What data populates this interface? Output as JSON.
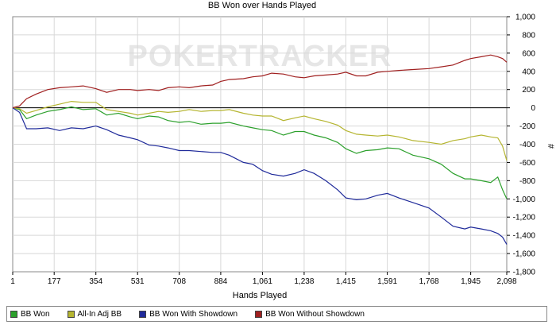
{
  "chart_data": {
    "type": "line",
    "title": "BB Won over Hands Played",
    "xlabel": "Hands Played",
    "ylabel": "#",
    "watermark": "POKERTRACKER",
    "xlim": [
      1,
      2098
    ],
    "ylim": [
      -1800,
      1000
    ],
    "x_ticks": [
      1,
      177,
      354,
      531,
      708,
      884,
      1061,
      1238,
      1415,
      1591,
      1768,
      1945,
      2098
    ],
    "x_tick_labels": [
      "1",
      "177",
      "354",
      "531",
      "708",
      "884",
      "1,061",
      "1,238",
      "1,415",
      "1,591",
      "1,768",
      "1,945",
      "2,098"
    ],
    "y_ticks": [
      1000,
      800,
      600,
      400,
      200,
      0,
      -200,
      -400,
      -600,
      -800,
      -1000,
      -1200,
      -1400,
      -1600,
      -1800
    ],
    "y_tick_labels": [
      "1,000",
      "800",
      "600",
      "400",
      "200",
      "0",
      "-200",
      "-400",
      "-600",
      "-800",
      "-1,000",
      "-1,200",
      "-1,400",
      "-1,600",
      "-1,800"
    ],
    "grid": true,
    "legend_position": "bottom",
    "series": [
      {
        "name": "BB Won",
        "color": "#2ca02c",
        "points": [
          [
            1,
            0
          ],
          [
            30,
            -20
          ],
          [
            60,
            -120
          ],
          [
            100,
            -80
          ],
          [
            150,
            -40
          ],
          [
            200,
            -20
          ],
          [
            250,
            10
          ],
          [
            300,
            -20
          ],
          [
            354,
            -10
          ],
          [
            400,
            -80
          ],
          [
            450,
            -60
          ],
          [
            500,
            -100
          ],
          [
            531,
            -120
          ],
          [
            580,
            -90
          ],
          [
            620,
            -100
          ],
          [
            660,
            -140
          ],
          [
            708,
            -160
          ],
          [
            750,
            -150
          ],
          [
            800,
            -180
          ],
          [
            850,
            -170
          ],
          [
            884,
            -170
          ],
          [
            920,
            -160
          ],
          [
            980,
            -200
          ],
          [
            1020,
            -220
          ],
          [
            1061,
            -240
          ],
          [
            1100,
            -250
          ],
          [
            1150,
            -300
          ],
          [
            1200,
            -260
          ],
          [
            1238,
            -260
          ],
          [
            1280,
            -300
          ],
          [
            1330,
            -330
          ],
          [
            1380,
            -380
          ],
          [
            1415,
            -450
          ],
          [
            1460,
            -500
          ],
          [
            1500,
            -470
          ],
          [
            1550,
            -460
          ],
          [
            1591,
            -440
          ],
          [
            1640,
            -450
          ],
          [
            1700,
            -520
          ],
          [
            1768,
            -560
          ],
          [
            1820,
            -620
          ],
          [
            1870,
            -720
          ],
          [
            1920,
            -780
          ],
          [
            1945,
            -780
          ],
          [
            1990,
            -800
          ],
          [
            2030,
            -820
          ],
          [
            2060,
            -760
          ],
          [
            2080,
            -900
          ],
          [
            2098,
            -1000
          ]
        ]
      },
      {
        "name": "All-In Adj BB",
        "color": "#b5b530",
        "points": [
          [
            1,
            0
          ],
          [
            30,
            -10
          ],
          [
            60,
            -60
          ],
          [
            100,
            -30
          ],
          [
            150,
            10
          ],
          [
            200,
            40
          ],
          [
            250,
            70
          ],
          [
            300,
            60
          ],
          [
            354,
            60
          ],
          [
            400,
            -20
          ],
          [
            450,
            -40
          ],
          [
            500,
            -60
          ],
          [
            531,
            -80
          ],
          [
            580,
            -60
          ],
          [
            620,
            -40
          ],
          [
            660,
            -50
          ],
          [
            708,
            -40
          ],
          [
            750,
            -20
          ],
          [
            800,
            -40
          ],
          [
            850,
            -30
          ],
          [
            884,
            -30
          ],
          [
            920,
            -20
          ],
          [
            980,
            -60
          ],
          [
            1020,
            -80
          ],
          [
            1061,
            -90
          ],
          [
            1100,
            -90
          ],
          [
            1150,
            -140
          ],
          [
            1200,
            -110
          ],
          [
            1238,
            -90
          ],
          [
            1280,
            -120
          ],
          [
            1330,
            -150
          ],
          [
            1380,
            -190
          ],
          [
            1415,
            -250
          ],
          [
            1460,
            -290
          ],
          [
            1500,
            -300
          ],
          [
            1550,
            -310
          ],
          [
            1591,
            -300
          ],
          [
            1640,
            -320
          ],
          [
            1700,
            -360
          ],
          [
            1768,
            -380
          ],
          [
            1820,
            -400
          ],
          [
            1870,
            -360
          ],
          [
            1920,
            -340
          ],
          [
            1945,
            -320
          ],
          [
            1990,
            -300
          ],
          [
            2030,
            -320
          ],
          [
            2060,
            -330
          ],
          [
            2080,
            -420
          ],
          [
            2098,
            -580
          ]
        ]
      },
      {
        "name": "BB Won With Showdown",
        "color": "#1f2a9a",
        "points": [
          [
            1,
            0
          ],
          [
            30,
            -50
          ],
          [
            60,
            -230
          ],
          [
            100,
            -230
          ],
          [
            150,
            -220
          ],
          [
            200,
            -250
          ],
          [
            250,
            -220
          ],
          [
            300,
            -230
          ],
          [
            354,
            -200
          ],
          [
            400,
            -240
          ],
          [
            450,
            -300
          ],
          [
            500,
            -330
          ],
          [
            531,
            -350
          ],
          [
            580,
            -410
          ],
          [
            620,
            -420
          ],
          [
            660,
            -440
          ],
          [
            708,
            -470
          ],
          [
            750,
            -470
          ],
          [
            800,
            -480
          ],
          [
            850,
            -490
          ],
          [
            884,
            -490
          ],
          [
            920,
            -520
          ],
          [
            980,
            -600
          ],
          [
            1020,
            -620
          ],
          [
            1061,
            -690
          ],
          [
            1100,
            -730
          ],
          [
            1150,
            -750
          ],
          [
            1200,
            -720
          ],
          [
            1238,
            -680
          ],
          [
            1280,
            -720
          ],
          [
            1330,
            -800
          ],
          [
            1380,
            -900
          ],
          [
            1415,
            -990
          ],
          [
            1460,
            -1010
          ],
          [
            1500,
            -1000
          ],
          [
            1550,
            -960
          ],
          [
            1591,
            -940
          ],
          [
            1640,
            -990
          ],
          [
            1700,
            -1040
          ],
          [
            1768,
            -1100
          ],
          [
            1820,
            -1200
          ],
          [
            1870,
            -1300
          ],
          [
            1920,
            -1330
          ],
          [
            1945,
            -1310
          ],
          [
            1990,
            -1330
          ],
          [
            2030,
            -1350
          ],
          [
            2060,
            -1380
          ],
          [
            2080,
            -1420
          ],
          [
            2098,
            -1500
          ]
        ]
      },
      {
        "name": "BB Won Without Showdown",
        "color": "#a02020",
        "points": [
          [
            1,
            0
          ],
          [
            30,
            20
          ],
          [
            60,
            100
          ],
          [
            100,
            150
          ],
          [
            150,
            200
          ],
          [
            200,
            220
          ],
          [
            250,
            230
          ],
          [
            300,
            240
          ],
          [
            354,
            210
          ],
          [
            400,
            170
          ],
          [
            450,
            200
          ],
          [
            500,
            200
          ],
          [
            531,
            190
          ],
          [
            580,
            200
          ],
          [
            620,
            190
          ],
          [
            660,
            220
          ],
          [
            708,
            230
          ],
          [
            750,
            220
          ],
          [
            800,
            240
          ],
          [
            850,
            250
          ],
          [
            884,
            290
          ],
          [
            920,
            310
          ],
          [
            980,
            320
          ],
          [
            1020,
            340
          ],
          [
            1061,
            350
          ],
          [
            1100,
            380
          ],
          [
            1150,
            370
          ],
          [
            1200,
            340
          ],
          [
            1238,
            330
          ],
          [
            1280,
            350
          ],
          [
            1330,
            360
          ],
          [
            1380,
            370
          ],
          [
            1415,
            390
          ],
          [
            1460,
            350
          ],
          [
            1500,
            350
          ],
          [
            1550,
            390
          ],
          [
            1591,
            400
          ],
          [
            1640,
            410
          ],
          [
            1700,
            420
          ],
          [
            1768,
            430
          ],
          [
            1820,
            450
          ],
          [
            1870,
            470
          ],
          [
            1920,
            520
          ],
          [
            1945,
            540
          ],
          [
            1990,
            560
          ],
          [
            2030,
            580
          ],
          [
            2060,
            560
          ],
          [
            2080,
            540
          ],
          [
            2098,
            500
          ]
        ]
      }
    ]
  }
}
